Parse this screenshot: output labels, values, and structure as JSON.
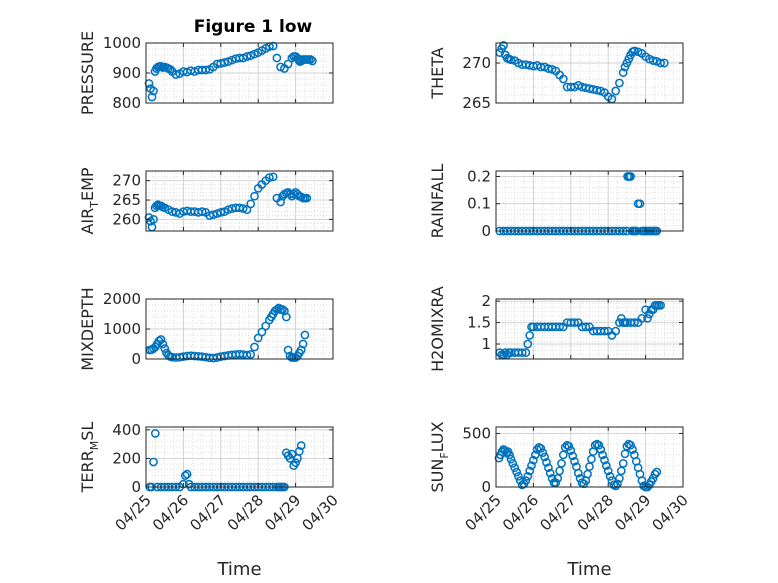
{
  "figure": {
    "title": "Figure 1 low",
    "x_axis_label": "Time"
  },
  "colors": {
    "marker": "#0072bd",
    "axis": "#262626",
    "grid": "#d0d0d0"
  },
  "chart_data": [
    {
      "type": "scatter",
      "marker": "circle",
      "title": "Figure 1 low",
      "ylabel_parts": [
        "PRESSURE"
      ],
      "ylim": [
        800,
        1000
      ],
      "yticks": [
        800,
        900,
        1000
      ],
      "xlim": [
        0,
        5
      ],
      "xtick_values": [
        0,
        1,
        2,
        3,
        4,
        5
      ],
      "xticklabels": [],
      "grid": "on",
      "x": [
        0.08,
        0.12,
        0.16,
        0.2,
        0.24,
        0.28,
        0.32,
        0.36,
        0.4,
        0.45,
        0.5,
        0.55,
        0.6,
        0.65,
        0.7,
        0.8,
        0.9,
        1.0,
        1.1,
        1.2,
        1.3,
        1.4,
        1.5,
        1.6,
        1.7,
        1.8,
        1.9,
        2.0,
        2.1,
        2.2,
        2.3,
        2.4,
        2.5,
        2.6,
        2.7,
        2.8,
        2.9,
        3.0,
        3.1,
        3.2,
        3.3,
        3.4,
        3.5,
        3.6,
        3.7,
        3.8,
        3.9,
        3.95,
        4.0,
        4.05,
        4.08,
        4.1,
        4.12,
        4.15,
        4.2,
        4.25,
        4.3,
        4.35,
        4.4,
        4.45
      ],
      "y": [
        865,
        848,
        820,
        840,
        905,
        915,
        920,
        922,
        922,
        918,
        920,
        918,
        915,
        912,
        905,
        895,
        898,
        905,
        903,
        908,
        905,
        910,
        910,
        910,
        912,
        920,
        930,
        932,
        935,
        938,
        943,
        948,
        950,
        950,
        955,
        958,
        963,
        968,
        975,
        982,
        988,
        990,
        950,
        920,
        915,
        930,
        950,
        955,
        955,
        950,
        945,
        940,
        938,
        940,
        945,
        945,
        945,
        945,
        945,
        940
      ],
      "points": 60
    },
    {
      "type": "scatter",
      "marker": "circle",
      "ylabel_parts": [
        "THETA"
      ],
      "ylim": [
        265,
        272.5
      ],
      "yticks": [
        265,
        270
      ],
      "xlim": [
        0,
        5
      ],
      "xtick_values": [
        0,
        1,
        2,
        3,
        4,
        5
      ],
      "xticklabels": [],
      "grid": "on",
      "x": [
        0.1,
        0.15,
        0.2,
        0.25,
        0.3,
        0.35,
        0.4,
        0.5,
        0.6,
        0.7,
        0.8,
        0.9,
        1.0,
        1.1,
        1.2,
        1.3,
        1.4,
        1.5,
        1.6,
        1.7,
        1.8,
        1.9,
        2.0,
        2.1,
        2.2,
        2.3,
        2.4,
        2.5,
        2.6,
        2.7,
        2.8,
        2.9,
        3.0,
        3.1,
        3.2,
        3.3,
        3.4,
        3.45,
        3.5,
        3.55,
        3.6,
        3.65,
        3.7,
        3.8,
        3.9,
        4.0,
        4.1,
        4.2,
        4.3,
        4.4,
        4.5
      ],
      "y": [
        271.3,
        271.8,
        272.2,
        271.0,
        270.6,
        270.5,
        270.4,
        270.3,
        270.0,
        269.8,
        269.8,
        269.7,
        269.6,
        269.7,
        269.5,
        269.5,
        269.3,
        269.2,
        269.0,
        268.5,
        268.0,
        267.0,
        267.0,
        267.0,
        267.2,
        267.0,
        266.9,
        266.8,
        266.7,
        266.6,
        266.5,
        266.3,
        265.8,
        265.5,
        266.5,
        267.5,
        268.8,
        269.5,
        270.0,
        270.5,
        271.0,
        271.4,
        271.5,
        271.4,
        271.2,
        270.8,
        270.5,
        270.3,
        270.2,
        270.0,
        270.0
      ],
      "points": 51
    },
    {
      "type": "scatter",
      "marker": "circle",
      "ylabel_parts": [
        "AIR",
        "T",
        "EMP"
      ],
      "ylim": [
        257,
        272.5
      ],
      "yticks": [
        260,
        265,
        270
      ],
      "xlim": [
        0,
        5
      ],
      "xtick_values": [
        0,
        1,
        2,
        3,
        4,
        5
      ],
      "xticklabels": [],
      "grid": "on",
      "x": [
        0.08,
        0.12,
        0.16,
        0.2,
        0.24,
        0.28,
        0.32,
        0.36,
        0.4,
        0.45,
        0.5,
        0.6,
        0.7,
        0.8,
        0.9,
        1.0,
        1.1,
        1.2,
        1.3,
        1.4,
        1.5,
        1.6,
        1.7,
        1.8,
        1.9,
        2.0,
        2.1,
        2.2,
        2.3,
        2.4,
        2.5,
        2.6,
        2.7,
        2.8,
        2.9,
        3.0,
        3.1,
        3.2,
        3.3,
        3.4,
        3.5,
        3.6,
        3.65,
        3.7,
        3.75,
        3.8,
        3.85,
        3.9,
        3.95,
        4.0,
        4.05,
        4.1,
        4.15,
        4.2,
        4.25,
        4.3
      ],
      "y": [
        260.5,
        259.5,
        258.0,
        260.0,
        263.0,
        263.5,
        263.8,
        263.5,
        263.5,
        263.2,
        263.0,
        262.5,
        262.0,
        261.8,
        261.5,
        262.0,
        262.2,
        262.0,
        262.0,
        261.8,
        262.0,
        261.8,
        261.0,
        261.2,
        261.5,
        261.8,
        262.0,
        262.5,
        262.8,
        263.0,
        263.0,
        262.8,
        262.5,
        264.0,
        266.0,
        268.0,
        269.0,
        270.0,
        270.8,
        271.0,
        265.5,
        264.5,
        266.0,
        266.5,
        266.8,
        267.0,
        266.5,
        266.0,
        266.5,
        267.0,
        266.5,
        266.0,
        265.8,
        265.5,
        265.5,
        265.5
      ],
      "points": 56
    },
    {
      "type": "scatter",
      "marker": "circle",
      "ylabel_parts": [
        "RAINFALL"
      ],
      "ylim": [
        0,
        0.22
      ],
      "yticks": [
        0,
        0.1,
        0.2
      ],
      "xlim": [
        0,
        5
      ],
      "xtick_values": [
        0,
        1,
        2,
        3,
        4,
        5
      ],
      "xticklabels": [],
      "grid": "on",
      "x": [
        0.1,
        0.2,
        0.3,
        0.4,
        0.5,
        0.6,
        0.7,
        0.8,
        0.9,
        1.0,
        1.1,
        1.2,
        1.3,
        1.4,
        1.5,
        1.6,
        1.7,
        1.8,
        1.9,
        2.0,
        2.1,
        2.2,
        2.3,
        2.4,
        2.5,
        2.6,
        2.7,
        2.8,
        2.9,
        3.0,
        3.1,
        3.2,
        3.3,
        3.4,
        3.5,
        3.52,
        3.56,
        3.6,
        3.64,
        3.68,
        3.72,
        3.76,
        3.8,
        3.85,
        3.9,
        3.95,
        4.0,
        4.05,
        4.1,
        4.15,
        4.2,
        4.25,
        4.3
      ],
      "y": [
        0,
        0,
        0,
        0,
        0,
        0,
        0,
        0,
        0,
        0,
        0,
        0,
        0,
        0,
        0,
        0,
        0,
        0,
        0,
        0,
        0,
        0,
        0,
        0,
        0,
        0,
        0,
        0,
        0,
        0,
        0,
        0,
        0,
        0,
        0,
        0.2,
        0.2,
        0.2,
        0,
        0,
        0,
        0,
        0.1,
        0.1,
        0,
        0,
        0,
        0,
        0,
        0,
        0,
        0,
        0
      ],
      "points": 53
    },
    {
      "type": "scatter",
      "marker": "circle",
      "ylabel_parts": [
        "MIXDEPTH"
      ],
      "ylim": [
        0,
        2000
      ],
      "yticks": [
        0,
        1000,
        2000
      ],
      "xlim": [
        0,
        5
      ],
      "xtick_values": [
        0,
        1,
        2,
        3,
        4,
        5
      ],
      "xticklabels": [],
      "grid": "on",
      "x": [
        0.1,
        0.15,
        0.2,
        0.25,
        0.3,
        0.35,
        0.4,
        0.45,
        0.5,
        0.55,
        0.6,
        0.65,
        0.7,
        0.8,
        0.9,
        1.0,
        1.1,
        1.2,
        1.3,
        1.4,
        1.5,
        1.6,
        1.7,
        1.8,
        1.9,
        2.0,
        2.1,
        2.2,
        2.3,
        2.4,
        2.5,
        2.6,
        2.7,
        2.8,
        2.9,
        3.0,
        3.1,
        3.2,
        3.3,
        3.35,
        3.4,
        3.45,
        3.5,
        3.55,
        3.6,
        3.65,
        3.7,
        3.75,
        3.8,
        3.85,
        3.9,
        3.95,
        4.0,
        4.05,
        4.1,
        4.15,
        4.2,
        4.25
      ],
      "y": [
        300,
        310,
        350,
        400,
        500,
        600,
        650,
        500,
        350,
        200,
        120,
        80,
        60,
        50,
        60,
        80,
        100,
        110,
        100,
        90,
        80,
        60,
        40,
        30,
        50,
        80,
        100,
        120,
        140,
        150,
        160,
        150,
        130,
        150,
        400,
        700,
        900,
        1100,
        1300,
        1400,
        1500,
        1600,
        1650,
        1700,
        1650,
        1650,
        1600,
        1400,
        300,
        100,
        50,
        50,
        50,
        100,
        200,
        300,
        500,
        800
      ],
      "points": 58
    },
    {
      "type": "scatter",
      "marker": "circle",
      "ylabel_parts": [
        "H2OMIXRA"
      ],
      "ylim": [
        0.65,
        2.05
      ],
      "yticks": [
        1,
        1.5,
        2
      ],
      "xlim": [
        0,
        5
      ],
      "xtick_values": [
        0,
        1,
        2,
        3,
        4,
        5
      ],
      "xticklabels": [],
      "grid": "on",
      "x": [
        0.1,
        0.15,
        0.2,
        0.25,
        0.3,
        0.35,
        0.4,
        0.5,
        0.6,
        0.7,
        0.8,
        0.85,
        0.9,
        0.95,
        1.0,
        1.1,
        1.2,
        1.3,
        1.4,
        1.5,
        1.6,
        1.7,
        1.8,
        1.9,
        2.0,
        2.1,
        2.2,
        2.3,
        2.4,
        2.5,
        2.6,
        2.7,
        2.8,
        2.9,
        3.0,
        3.1,
        3.2,
        3.3,
        3.35,
        3.4,
        3.45,
        3.5,
        3.6,
        3.7,
        3.8,
        3.9,
        4.0,
        4.05,
        4.1,
        4.15,
        4.2,
        4.25,
        4.3,
        4.35,
        4.4
      ],
      "y": [
        0.8,
        0.75,
        0.75,
        0.8,
        0.75,
        0.8,
        0.8,
        0.8,
        0.8,
        0.8,
        0.8,
        1.0,
        1.2,
        1.4,
        1.4,
        1.4,
        1.4,
        1.4,
        1.4,
        1.4,
        1.4,
        1.4,
        1.4,
        1.5,
        1.5,
        1.5,
        1.5,
        1.4,
        1.4,
        1.4,
        1.3,
        1.3,
        1.3,
        1.3,
        1.3,
        1.2,
        1.3,
        1.5,
        1.6,
        1.5,
        1.5,
        1.5,
        1.5,
        1.5,
        1.5,
        1.6,
        1.8,
        1.6,
        1.7,
        1.8,
        1.8,
        1.9,
        1.9,
        1.9,
        1.9
      ],
      "points": 55
    },
    {
      "type": "scatter",
      "marker": "circle",
      "ylabel_parts": [
        "TERR",
        "M",
        "SL"
      ],
      "ylim": [
        0,
        420
      ],
      "yticks": [
        0,
        200,
        400
      ],
      "xlim": [
        0,
        5
      ],
      "xtick_values": [
        0,
        1,
        2,
        3,
        4,
        5
      ],
      "xticklabels": [
        "04/25",
        "04/26",
        "04/27",
        "04/28",
        "04/29",
        "04/30"
      ],
      "xlabel": "Time",
      "grid": "on",
      "x": [
        0.1,
        0.15,
        0.2,
        0.25,
        0.3,
        0.4,
        0.5,
        0.6,
        0.7,
        0.8,
        0.9,
        1.0,
        1.05,
        1.1,
        1.15,
        1.2,
        1.3,
        1.4,
        1.5,
        1.6,
        1.7,
        1.8,
        1.9,
        2.0,
        2.1,
        2.2,
        2.3,
        2.4,
        2.5,
        2.6,
        2.7,
        2.8,
        2.9,
        3.0,
        3.1,
        3.2,
        3.3,
        3.4,
        3.5,
        3.55,
        3.6,
        3.65,
        3.7,
        3.75,
        3.8,
        3.85,
        3.9,
        3.95,
        4.0,
        4.05,
        4.1,
        4.15
      ],
      "y": [
        0,
        0,
        175,
        375,
        0,
        0,
        0,
        0,
        0,
        0,
        0,
        20,
        80,
        90,
        20,
        0,
        0,
        0,
        0,
        0,
        0,
        0,
        0,
        0,
        0,
        0,
        0,
        0,
        0,
        0,
        0,
        0,
        0,
        0,
        0,
        0,
        0,
        0,
        0,
        0,
        0,
        0,
        0,
        240,
        220,
        200,
        230,
        150,
        170,
        200,
        250,
        290
      ],
      "points": 52
    },
    {
      "type": "scatter",
      "marker": "circle",
      "ylabel_parts": [
        "SUN",
        "F",
        "LUX"
      ],
      "ylim": [
        0,
        560
      ],
      "yticks": [
        0,
        500
      ],
      "xlim": [
        0,
        5
      ],
      "xtick_values": [
        0,
        1,
        2,
        3,
        4,
        5
      ],
      "xticklabels": [
        "04/25",
        "04/26",
        "04/27",
        "04/28",
        "04/29",
        "04/30"
      ],
      "xlabel": "Time",
      "grid": "on",
      "x": [
        0.08,
        0.12,
        0.16,
        0.2,
        0.24,
        0.28,
        0.32,
        0.36,
        0.4,
        0.45,
        0.5,
        0.55,
        0.6,
        0.65,
        0.7,
        0.75,
        0.8,
        0.85,
        0.9,
        0.95,
        1.0,
        1.05,
        1.1,
        1.15,
        1.2,
        1.25,
        1.3,
        1.35,
        1.4,
        1.45,
        1.5,
        1.55,
        1.6,
        1.65,
        1.7,
        1.75,
        1.8,
        1.85,
        1.9,
        1.95,
        2.0,
        2.05,
        2.1,
        2.15,
        2.2,
        2.25,
        2.3,
        2.35,
        2.4,
        2.45,
        2.5,
        2.55,
        2.6,
        2.65,
        2.7,
        2.75,
        2.8,
        2.85,
        2.9,
        2.95,
        3.0,
        3.05,
        3.1,
        3.15,
        3.2,
        3.25,
        3.3,
        3.35,
        3.4,
        3.45,
        3.5,
        3.55,
        3.6,
        3.65,
        3.7,
        3.75,
        3.8,
        3.85,
        3.9,
        3.95,
        4.0,
        4.05,
        4.1,
        4.15,
        4.2,
        4.25,
        4.3
      ],
      "y": [
        270,
        300,
        330,
        350,
        340,
        320,
        330,
        300,
        260,
        220,
        180,
        140,
        100,
        60,
        20,
        30,
        60,
        100,
        150,
        200,
        250,
        300,
        350,
        370,
        360,
        320,
        280,
        230,
        180,
        130,
        80,
        40,
        40,
        80,
        150,
        220,
        300,
        370,
        390,
        380,
        340,
        290,
        240,
        190,
        130,
        80,
        40,
        30,
        60,
        120,
        190,
        260,
        330,
        390,
        400,
        390,
        350,
        300,
        250,
        200,
        150,
        100,
        60,
        20,
        10,
        30,
        80,
        150,
        220,
        310,
        380,
        400,
        390,
        350,
        300,
        240,
        180,
        120,
        60,
        10,
        0,
        0,
        20,
        50,
        80,
        120,
        140
      ],
      "points": 87
    }
  ]
}
